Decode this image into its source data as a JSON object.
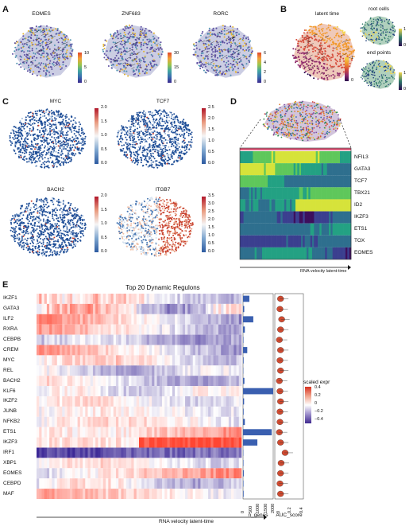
{
  "panels": {
    "a": "A",
    "b": "B",
    "c": "C",
    "d": "D",
    "e": "E"
  },
  "panelA": {
    "plots": [
      {
        "gene": "EOMES",
        "ticks": [
          "10",
          "5",
          "0"
        ]
      },
      {
        "gene": "ZNF683",
        "ticks": [
          "30",
          "15",
          "0"
        ]
      },
      {
        "gene": "RORC",
        "ticks": [
          "6",
          "4",
          "2",
          "0"
        ]
      }
    ]
  },
  "panelB": {
    "latent": "latent time",
    "root": "root cells",
    "end": "end points",
    "ticks_main": [
      "1",
      "0"
    ],
    "ticks_root": [
      "1",
      "0"
    ],
    "ticks_end": [
      "1",
      "0"
    ]
  },
  "panelC": {
    "plots": [
      {
        "gene": "MYC",
        "ticks": [
          "2.0",
          "1.5",
          "1.0",
          "0.5",
          "0.0"
        ]
      },
      {
        "gene": "TCF7",
        "ticks": [
          "2.5",
          "2.0",
          "1.5",
          "1.0",
          "0.5",
          "0.0"
        ]
      },
      {
        "gene": "BACH2",
        "ticks": [
          "2.0",
          "1.5",
          "1.0",
          "0.5",
          "0.0"
        ]
      },
      {
        "gene": "ITGB7",
        "ticks": [
          "3.5",
          "3.0",
          "2.5",
          "2.0",
          "1.5",
          "1.0",
          "0.5",
          "0.0"
        ]
      }
    ]
  },
  "panelD": {
    "genes": [
      "NFIL3",
      "GATA3",
      "TCF7",
      "TBX21",
      "ID2",
      "IKZF3",
      "ETS1",
      "TOX",
      "EOMES"
    ],
    "axis": "RNA velocity latent-time"
  },
  "panelE": {
    "title": "Top 20 Dynamic Regulons",
    "genes": [
      "IKZF1",
      "GATA3",
      "ILF2",
      "RXRA",
      "CEBPB",
      "CREM",
      "MYC",
      "REL",
      "BACH2",
      "KLF6",
      "IKZF2",
      "JUNB",
      "NFKB2",
      "ETS1",
      "IKZF3",
      "IRF1",
      "XBP1",
      "EOMES",
      "CEBPD",
      "MAF"
    ],
    "n_genes": [
      420,
      80,
      680,
      120,
      30,
      280,
      40,
      20,
      90,
      2000,
      70,
      40,
      120,
      1900,
      950,
      20,
      30,
      50,
      30,
      40
    ],
    "bar_ticks": [
      "0",
      "500",
      "1000",
      "1500",
      "2000"
    ],
    "bar_label": "n_genes",
    "auc_ticks": [
      "0",
      "0.2",
      "0.4"
    ],
    "auc_label": "AUC_score",
    "legend_title": "scaled expr",
    "legend_ticks": [
      "0.4",
      "0.2",
      "0",
      "−0.2",
      "−0.4"
    ],
    "axis": "RNA velocity latent-time"
  },
  "colors": {
    "high": "#d7301f",
    "low": "#3f2a8f",
    "mid": "#ffffff",
    "velo_blue": "#1f3c88",
    "bar": "#3a5fb0"
  }
}
